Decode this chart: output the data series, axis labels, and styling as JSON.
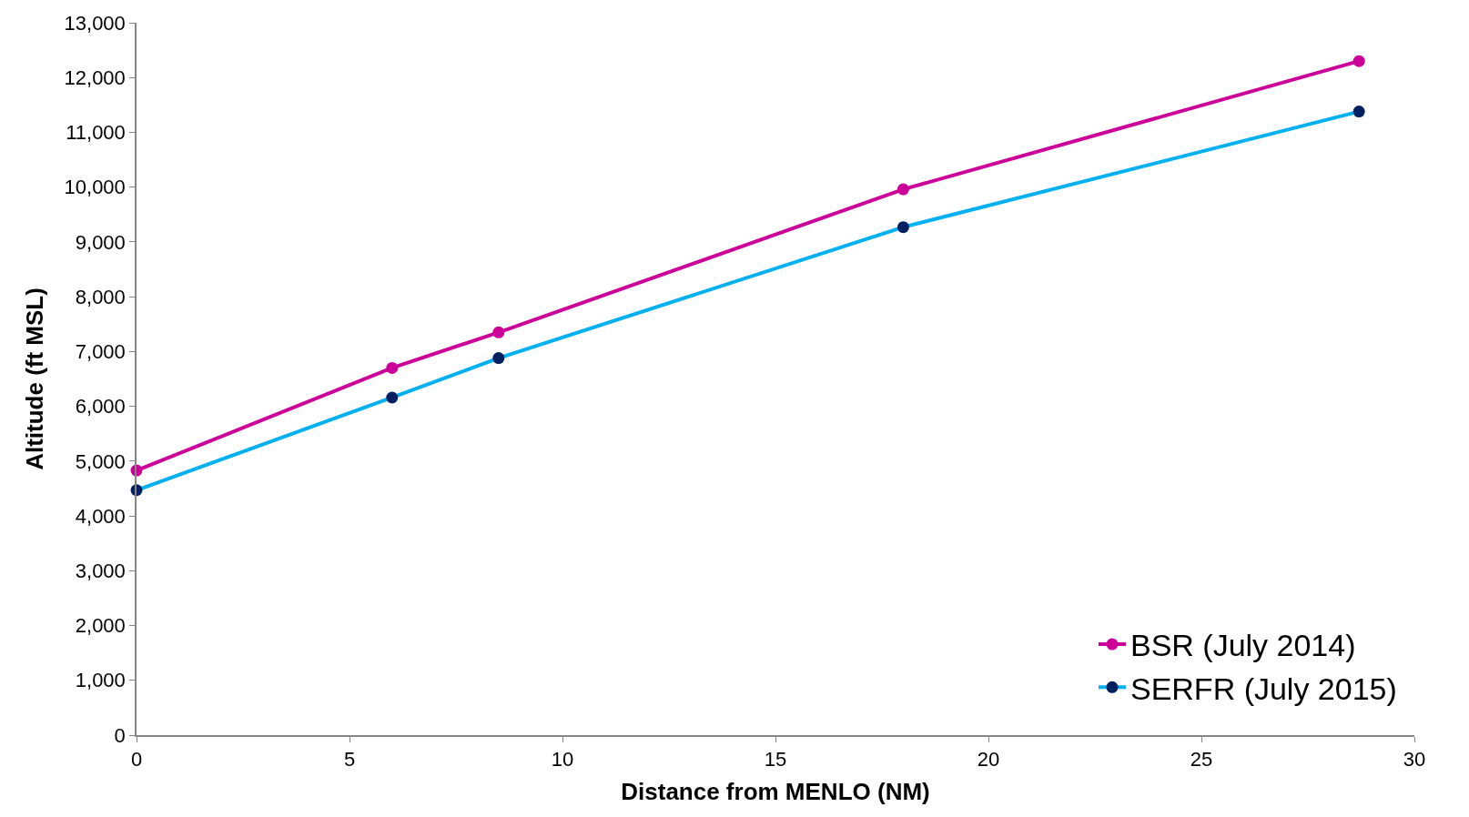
{
  "chart_data": {
    "type": "line",
    "xlabel": "Distance from MENLO (NM)",
    "ylabel": "Altitude (ft MSL)",
    "x": [
      0,
      6,
      8.5,
      18,
      28.7
    ],
    "series": [
      {
        "name": "BSR (July 2014)",
        "color": "#cc0099",
        "values": [
          4830,
          6700,
          7350,
          9960,
          12300
        ]
      },
      {
        "name": "SERFR (July 2015)",
        "color": "#00b0f0",
        "colors": [
          "#002060",
          "#002060",
          "#002060",
          "#002060",
          "#002060"
        ],
        "values": [
          4470,
          6160,
          6880,
          9270,
          11380
        ]
      }
    ],
    "xlim": [
      0,
      30
    ],
    "xticks": [
      0,
      5,
      10,
      15,
      20,
      25,
      30
    ],
    "ylim": [
      0,
      13000
    ],
    "yticks": [
      {
        "value": 0,
        "label": "0"
      },
      {
        "value": 1000,
        "label": "1,000"
      },
      {
        "value": 2000,
        "label": "2,000"
      },
      {
        "value": 3000,
        "label": "3,000"
      },
      {
        "value": 4000,
        "label": "4,000"
      },
      {
        "value": 5000,
        "label": "5,000"
      },
      {
        "value": 6000,
        "label": "6,000"
      },
      {
        "value": 7000,
        "label": "7,000"
      },
      {
        "value": 8000,
        "label": "8,000"
      },
      {
        "value": 9000,
        "label": "9,000"
      },
      {
        "value": 10000,
        "label": "10,000"
      },
      {
        "value": 11000,
        "label": "11,000"
      },
      {
        "value": 12000,
        "label": "12,000"
      },
      {
        "value": 13000,
        "label": "13,000"
      }
    ],
    "legend": "bottom right",
    "marker": "circle",
    "line_style": "solid"
  }
}
